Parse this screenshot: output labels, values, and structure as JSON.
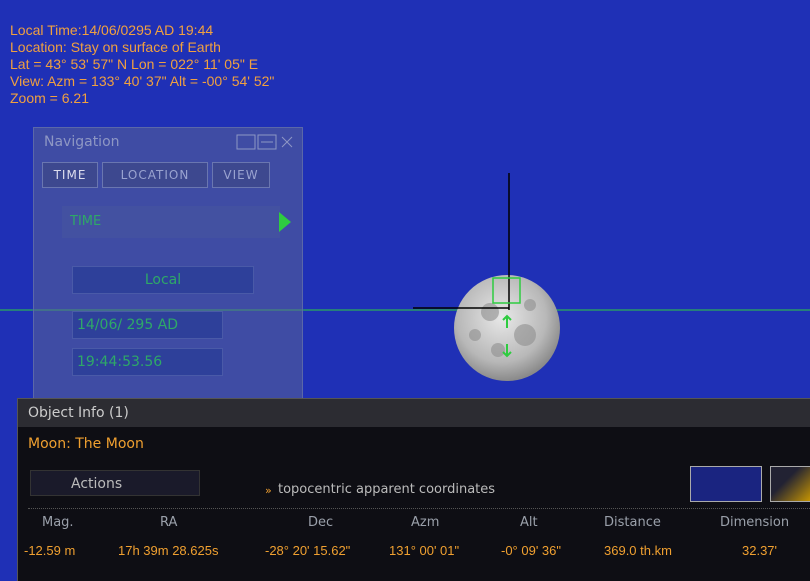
{
  "info": {
    "lines": [
      "Local Time:14/06/0295 AD 19:44",
      "Location: Stay on surface of Earth",
      "Lat = 43° 53' 57\" N  Lon = 022° 11' 05\" E",
      "View: Azm = 133° 40' 37\"  Alt = -00° 54' 52\"",
      "Zoom = 6.21"
    ]
  },
  "navigation": {
    "title": "Navigation",
    "tabs": [
      "TIME",
      "LOCATION",
      "VIEW"
    ],
    "section": "TIME",
    "timezone": "Local",
    "date": "14/06/ 295  AD",
    "time": "19:44:53.56"
  },
  "object_info": {
    "title": "Object Info (1)",
    "object": "Moon: The Moon",
    "actions": "Actions",
    "coords": "topocentric apparent coordinates",
    "table": {
      "headers": [
        "Mag.",
        "RA",
        "Dec",
        "Azm",
        "Alt",
        "Distance",
        "Dimension"
      ],
      "values": [
        "-12.59 m",
        "17h 39m 28.625s",
        "-28° 20' 15.62\"",
        "131° 00' 01\"",
        "-0° 09' 36\"",
        "369.0 th.km",
        "32.37'"
      ]
    }
  }
}
